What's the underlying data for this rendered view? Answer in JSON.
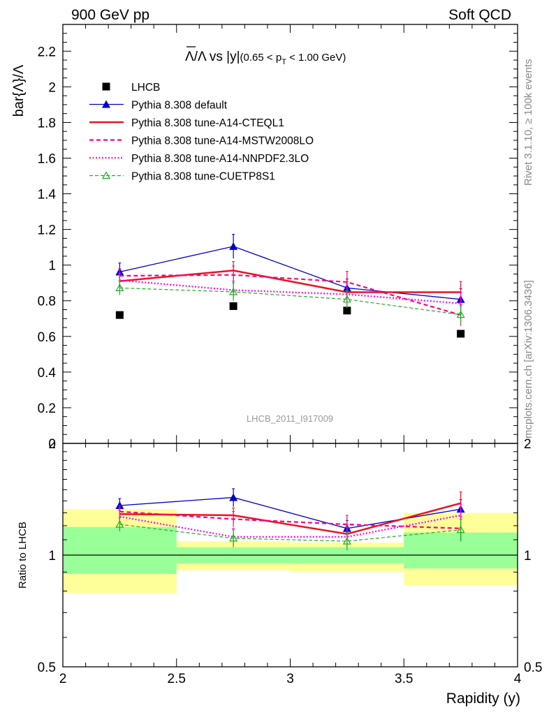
{
  "header": {
    "left": "900 GeV pp",
    "right": "Soft QCD"
  },
  "side_labels": {
    "rivet": "Rivet 3.1.10, ≥ 100k events",
    "mcplots": "mcplots.cern.ch [arXiv:1306.3436]"
  },
  "chart_data": [
    {
      "type": "line",
      "title_parts": {
        "main": "Λ/Λ vs |y|",
        "cut": "(0.65 < p",
        "cut_sub": "T",
        "cut_end": " < 1.00 GeV)"
      },
      "ylabel": "bar{Λ}/Λ",
      "watermark": "LHCB_2011_I917009",
      "xlim": [
        2,
        4
      ],
      "ylim": [
        0,
        2.35
      ],
      "y_ticks": [
        "0",
        "0.2",
        "0.4",
        "0.6",
        "0.8",
        "1",
        "1.2",
        "1.4",
        "1.6",
        "1.8",
        "2",
        "2.2"
      ],
      "x": [
        2.25,
        2.75,
        3.25,
        3.75
      ],
      "series": [
        {
          "name": "LHCB",
          "style": "data",
          "color": "#000000",
          "values": [
            0.72,
            0.77,
            0.745,
            0.615
          ],
          "err": [
            0.0,
            0.0,
            0.0,
            0.0
          ]
        },
        {
          "name": "Pythia 8.308 default",
          "style": "solid-triangle",
          "color": "#0000cc",
          "values": [
            0.962,
            1.105,
            0.872,
            0.808
          ],
          "err": [
            0.05,
            0.068,
            0.05,
            0.06
          ]
        },
        {
          "name": "Pythia 8.308 tune-A14-CTEQL1",
          "style": "solid-thick",
          "color": "#e8141e",
          "values": [
            0.91,
            0.97,
            0.848,
            0.848
          ],
          "err": [
            0.04,
            0.05,
            0.06,
            0.06
          ]
        },
        {
          "name": "Pythia 8.308 tune-A14-MSTW2008LO",
          "style": "dashed",
          "color": "#ff0080",
          "values": [
            0.94,
            0.945,
            0.905,
            0.72
          ],
          "err": [
            0.04,
            0.05,
            0.06,
            0.06
          ]
        },
        {
          "name": "Pythia 8.308 tune-A14-NNPDF2.3LO",
          "style": "dotted",
          "color": "#ff00ff",
          "values": [
            0.915,
            0.86,
            0.836,
            0.785
          ],
          "err": [
            0.04,
            0.05,
            0.06,
            0.06
          ]
        },
        {
          "name": "Pythia 8.308 tune-CUETP8S1",
          "style": "dashed-triangle",
          "color": "#22aa22",
          "values": [
            0.872,
            0.85,
            0.808,
            0.722
          ],
          "err": [
            0.04,
            0.05,
            0.05,
            0.05
          ]
        }
      ]
    },
    {
      "type": "line",
      "ylabel": "Ratio to LHCB",
      "xlabel": "Rapidity (y)",
      "xlim": [
        2,
        4
      ],
      "ylim": [
        0.5,
        2.0
      ],
      "y_ticks": [
        "0.5",
        "1",
        "2"
      ],
      "x_ticks": [
        "2",
        "2.5",
        "3",
        "3.5",
        "4"
      ],
      "reference": 1.0,
      "bands": [
        {
          "x0": 2.0,
          "x1": 2.5,
          "yellow": [
            0.79,
            1.33
          ],
          "green": [
            0.89,
            1.19
          ]
        },
        {
          "x0": 2.5,
          "x1": 3.0,
          "yellow": [
            0.91,
            1.09
          ],
          "green": [
            0.95,
            1.05
          ]
        },
        {
          "x0": 3.0,
          "x1": 3.5,
          "yellow": [
            0.9,
            1.08
          ],
          "green": [
            0.95,
            1.05
          ]
        },
        {
          "x0": 3.5,
          "x1": 4.0,
          "yellow": [
            0.83,
            1.3
          ],
          "green": [
            0.92,
            1.15
          ]
        }
      ],
      "x": [
        2.25,
        2.75,
        3.25,
        3.75
      ],
      "series": [
        {
          "name": "Pythia 8.308 default",
          "values": [
            1.36,
            1.43,
            1.18,
            1.33
          ],
          "err": [
            0.06,
            0.08,
            0.06,
            0.08
          ]
        },
        {
          "name": "Pythia 8.308 tune-A14-CTEQL1",
          "values": [
            1.29,
            1.28,
            1.14,
            1.38
          ],
          "err": [
            0.05,
            0.06,
            0.07,
            0.1
          ]
        },
        {
          "name": "Pythia 8.308 tune-A14-MSTW2008LO",
          "values": [
            1.31,
            1.25,
            1.21,
            1.18
          ],
          "err": [
            0.05,
            0.06,
            0.07,
            0.09
          ]
        },
        {
          "name": "Pythia 8.308 tune-A14-NNPDF2.3LO",
          "values": [
            1.27,
            1.12,
            1.12,
            1.28
          ],
          "err": [
            0.05,
            0.06,
            0.07,
            0.09
          ]
        },
        {
          "name": "Pythia 8.308 tune-CUETP8S1",
          "values": [
            1.21,
            1.11,
            1.09,
            1.17
          ],
          "err": [
            0.05,
            0.06,
            0.06,
            0.08
          ]
        }
      ]
    }
  ]
}
